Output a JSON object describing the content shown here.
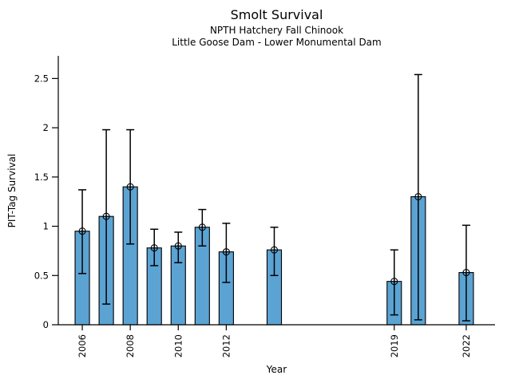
{
  "chart_data": {
    "type": "bar",
    "title": "Smolt Survival",
    "subtitle_line1": "NPTH Hatchery Fall Chinook",
    "subtitle_line2": "Little Goose Dam - Lower Monumental Dam",
    "xlabel": "Year",
    "ylabel": "PIT-Tag Survival",
    "years": [
      2006,
      2007,
      2008,
      2009,
      2010,
      2011,
      2012,
      2014,
      2019,
      2020,
      2022
    ],
    "values": [
      0.95,
      1.1,
      1.4,
      0.78,
      0.8,
      0.99,
      0.74,
      0.76,
      0.44,
      1.3,
      0.53
    ],
    "error_low": [
      0.52,
      0.21,
      0.82,
      0.6,
      0.63,
      0.8,
      0.43,
      0.5,
      0.1,
      0.05,
      0.04
    ],
    "error_high": [
      1.37,
      1.98,
      1.98,
      0.97,
      0.94,
      1.17,
      1.03,
      0.99,
      0.76,
      2.54,
      1.01
    ],
    "xticks": [
      2006,
      2008,
      2010,
      2012,
      2019,
      2022
    ],
    "ytick_values": [
      0,
      0.5,
      1,
      1.5,
      2,
      2.5
    ],
    "ytick_labels": [
      "0",
      "0.5",
      "1",
      "1.5",
      "2",
      "2.5"
    ],
    "xlim": [
      2005,
      2023.2
    ],
    "ylim": [
      0,
      2.73
    ],
    "bar_width_years": 0.6,
    "bar_color": "#5ba3d3",
    "bar_edge_color": "#000000",
    "error_color": "#000000",
    "marker": "open-circle",
    "grid": false,
    "legend": null,
    "background_color": "#ffffff"
  }
}
